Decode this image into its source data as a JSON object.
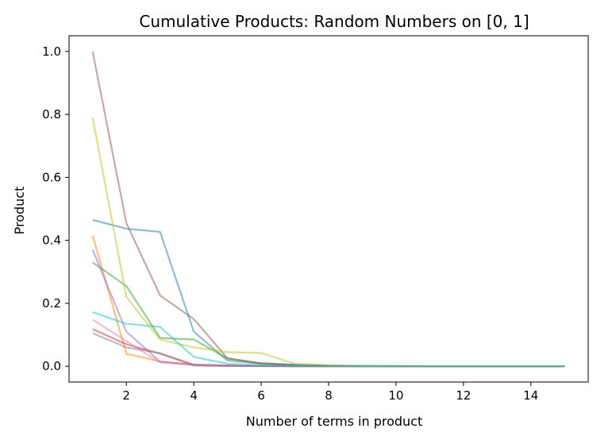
{
  "chart_data": {
    "type": "line",
    "title": "Cumulative Products: Random Numbers on [0, 1]",
    "xlabel": "Number of terms in product",
    "ylabel": "Product",
    "xlim": [
      0.3,
      15.7
    ],
    "ylim": [
      -0.05,
      1.05
    ],
    "xticks": [
      2,
      4,
      6,
      8,
      10,
      12,
      14
    ],
    "yticks": [
      0.0,
      0.2,
      0.4,
      0.6,
      0.8,
      1.0
    ],
    "ytick_labels": [
      "0.0",
      "0.2",
      "0.4",
      "0.6",
      "0.8",
      "1.0"
    ],
    "grid": false,
    "x": [
      1,
      2,
      3,
      4,
      5,
      6,
      7,
      8,
      9,
      10,
      11,
      12,
      13,
      14,
      15
    ],
    "series": [
      {
        "color": "#1f77b4",
        "values": [
          0.465,
          0.437,
          0.427,
          0.11,
          0.018,
          0.009,
          0.005,
          0.002,
          0.001,
          0.0005,
          0.0003,
          0.0002,
          0.0001,
          0.0001,
          0.0
        ]
      },
      {
        "color": "#ff7f0e",
        "values": [
          0.415,
          0.04,
          0.015,
          0.005,
          0.002,
          0.001,
          0.0005,
          0.0002,
          0.0001,
          0.0,
          0.0,
          0.0,
          0.0,
          0.0,
          0.0
        ]
      },
      {
        "color": "#2ca02c",
        "values": [
          0.33,
          0.255,
          0.09,
          0.085,
          0.025,
          0.008,
          0.004,
          0.002,
          0.001,
          0.0005,
          0.0002,
          0.0001,
          0.0,
          0.0,
          0.0
        ]
      },
      {
        "color": "#d62728",
        "values": [
          0.118,
          0.07,
          0.04,
          0.005,
          0.002,
          0.001,
          0.0005,
          0.0002,
          0.0001,
          0.0,
          0.0,
          0.0,
          0.0,
          0.0,
          0.0
        ]
      },
      {
        "color": "#9467bd",
        "values": [
          0.37,
          0.11,
          0.015,
          0.005,
          0.002,
          0.001,
          0.0005,
          0.0002,
          0.0001,
          0.0,
          0.0,
          0.0,
          0.0,
          0.0,
          0.0
        ]
      },
      {
        "color": "#8c564b",
        "values": [
          1.0,
          0.455,
          0.225,
          0.15,
          0.025,
          0.01,
          0.004,
          0.002,
          0.001,
          0.0005,
          0.0002,
          0.0001,
          0.0,
          0.0,
          0.0
        ]
      },
      {
        "color": "#e377c2",
        "values": [
          0.148,
          0.08,
          0.012,
          0.004,
          0.001,
          0.0005,
          0.0002,
          0.0001,
          0.0,
          0.0,
          0.0,
          0.0,
          0.0,
          0.0,
          0.0
        ]
      },
      {
        "color": "#7f7f7f",
        "values": [
          0.105,
          0.06,
          0.042,
          0.002,
          0.001,
          0.0005,
          0.0002,
          0.0001,
          0.0,
          0.0,
          0.0,
          0.0,
          0.0,
          0.0,
          0.0
        ]
      },
      {
        "color": "#bcbd22",
        "values": [
          0.79,
          0.22,
          0.085,
          0.06,
          0.045,
          0.042,
          0.008,
          0.003,
          0.001,
          0.0005,
          0.0002,
          0.0001,
          0.0,
          0.0,
          0.0
        ]
      },
      {
        "color": "#17becf",
        "values": [
          0.172,
          0.135,
          0.125,
          0.03,
          0.008,
          0.004,
          0.002,
          0.001,
          0.0005,
          0.0002,
          0.0001,
          0.0,
          0.0,
          0.0,
          0.0
        ]
      }
    ]
  }
}
